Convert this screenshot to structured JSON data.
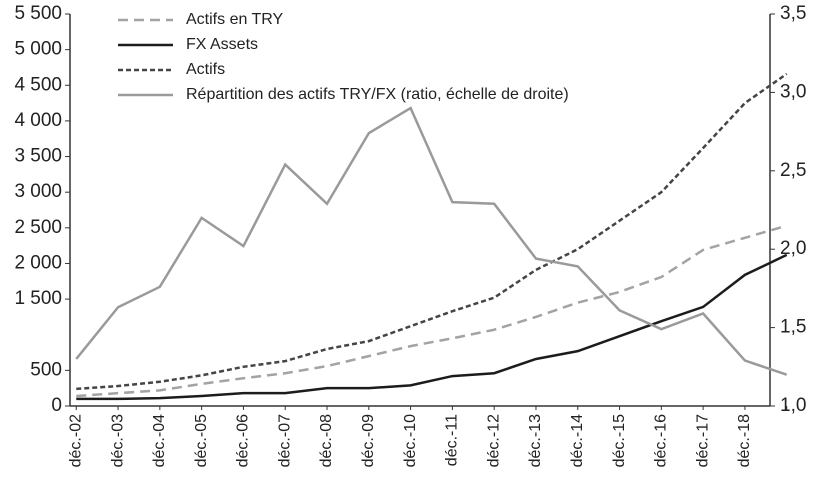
{
  "chart_data": {
    "type": "line",
    "categories": [
      "déc.-02",
      "déc.-03",
      "déc.-04",
      "déc.-05",
      "déc.-06",
      "déc.-07",
      "déc.-08",
      "déc.-09",
      "déc.-10",
      "déc.-11",
      "déc.-12",
      "déc.-13",
      "déc.-14",
      "déc.-15",
      "déc.-16",
      "déc.-17",
      "déc.-18",
      null
    ],
    "xlim": [
      -0.15,
      16.6
    ],
    "series": [
      {
        "name": "Actifs en TRY",
        "color": "#a3a3a3",
        "dash": "dashed",
        "values": [
          140,
          180,
          220,
          310,
          390,
          460,
          560,
          700,
          840,
          950,
          1070,
          1250,
          1450,
          1600,
          1810,
          2190,
          2360,
          2530
        ]
      },
      {
        "name": "FX Assets",
        "color": "#1c1c1c",
        "dash": "solid",
        "values": [
          100,
          100,
          110,
          140,
          180,
          180,
          250,
          250,
          290,
          420,
          460,
          660,
          770,
          980,
          1190,
          1390,
          1840,
          2120
        ]
      },
      {
        "name": "Actifs",
        "color": "#454545",
        "dash": "dotted",
        "values": [
          240,
          280,
          340,
          430,
          550,
          630,
          800,
          910,
          1120,
          1330,
          1520,
          1910,
          2200,
          2600,
          3000,
          3620,
          4250,
          4660
        ]
      },
      {
        "name": "Répartition des actifs TRY/FX (ratio, échelle de droite)",
        "color": "#9a9a9a",
        "dash": "solid",
        "axis": "y2",
        "values": [
          1.3,
          1.63,
          1.76,
          2.2,
          2.02,
          2.54,
          2.29,
          2.74,
          2.9,
          2.3,
          2.29,
          1.94,
          1.89,
          1.61,
          1.49,
          1.59,
          1.29,
          1.2
        ]
      }
    ],
    "ylim": [
      0,
      5500
    ],
    "yticks": [
      0,
      500,
      {
        "value": 1500,
        "label": "1 500"
      },
      {
        "value": 2000,
        "label": "2 000"
      },
      {
        "value": 2500,
        "label": "2 500"
      },
      {
        "value": 3000,
        "label": "3 000"
      },
      {
        "value": 3500,
        "label": "3 500"
      },
      {
        "value": 4000,
        "label": "4 000"
      },
      {
        "value": 4500,
        "label": "4 500"
      },
      {
        "value": 5000,
        "label": "5 000"
      },
      {
        "value": 5500,
        "label": "5 500"
      }
    ],
    "y2lim": [
      1.0,
      3.5
    ],
    "y2ticks": [
      {
        "value": 1.0,
        "label": "1,0"
      },
      {
        "value": 1.5,
        "label": "1,5"
      },
      {
        "value": 2.0,
        "label": "2,0"
      },
      {
        "value": 2.5,
        "label": "2,5"
      },
      {
        "value": 3.0,
        "label": "3,0"
      },
      {
        "value": 3.5,
        "label": "3,5"
      }
    ],
    "legend": "upper left"
  }
}
